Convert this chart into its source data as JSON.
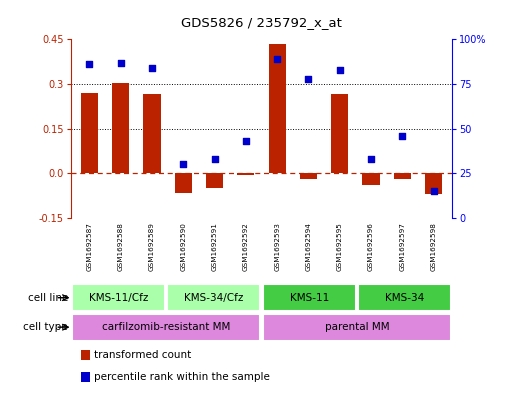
{
  "title": "GDS5826 / 235792_x_at",
  "samples": [
    "GSM1692587",
    "GSM1692588",
    "GSM1692589",
    "GSM1692590",
    "GSM1692591",
    "GSM1692592",
    "GSM1692593",
    "GSM1692594",
    "GSM1692595",
    "GSM1692596",
    "GSM1692597",
    "GSM1692598"
  ],
  "bar_values": [
    0.27,
    0.305,
    0.265,
    -0.065,
    -0.05,
    -0.005,
    0.435,
    -0.02,
    0.265,
    -0.04,
    -0.02,
    -0.07
  ],
  "scatter_values": [
    86,
    87,
    84,
    30,
    33,
    43,
    89,
    78,
    83,
    33,
    46,
    15
  ],
  "ylim_left": [
    -0.15,
    0.45
  ],
  "ylim_right": [
    0,
    100
  ],
  "yticks_left": [
    -0.15,
    0.0,
    0.15,
    0.3,
    0.45
  ],
  "yticks_right": [
    0,
    25,
    50,
    75,
    100
  ],
  "hlines": [
    0.15,
    0.3
  ],
  "bar_color": "#bb2200",
  "scatter_color": "#0000cc",
  "zero_line_color": "#bb2200",
  "cell_line_groups": [
    {
      "label": "KMS-11/Cfz",
      "start": 0,
      "end": 3,
      "color": "#aaffaa"
    },
    {
      "label": "KMS-34/Cfz",
      "start": 3,
      "end": 6,
      "color": "#aaffaa"
    },
    {
      "label": "KMS-11",
      "start": 6,
      "end": 9,
      "color": "#44cc44"
    },
    {
      "label": "KMS-34",
      "start": 9,
      "end": 12,
      "color": "#44cc44"
    }
  ],
  "cell_type_groups": [
    {
      "label": "carfilzomib-resistant MM",
      "start": 0,
      "end": 6,
      "color": "#dd88dd"
    },
    {
      "label": "parental MM",
      "start": 6,
      "end": 12,
      "color": "#dd88dd"
    }
  ],
  "legend_items": [
    {
      "label": "transformed count",
      "color": "#bb2200"
    },
    {
      "label": "percentile rank within the sample",
      "color": "#0000cc"
    }
  ],
  "background_color": "#ffffff",
  "sample_bg_color": "#cccccc",
  "plot_bg_color": "#ffffff"
}
